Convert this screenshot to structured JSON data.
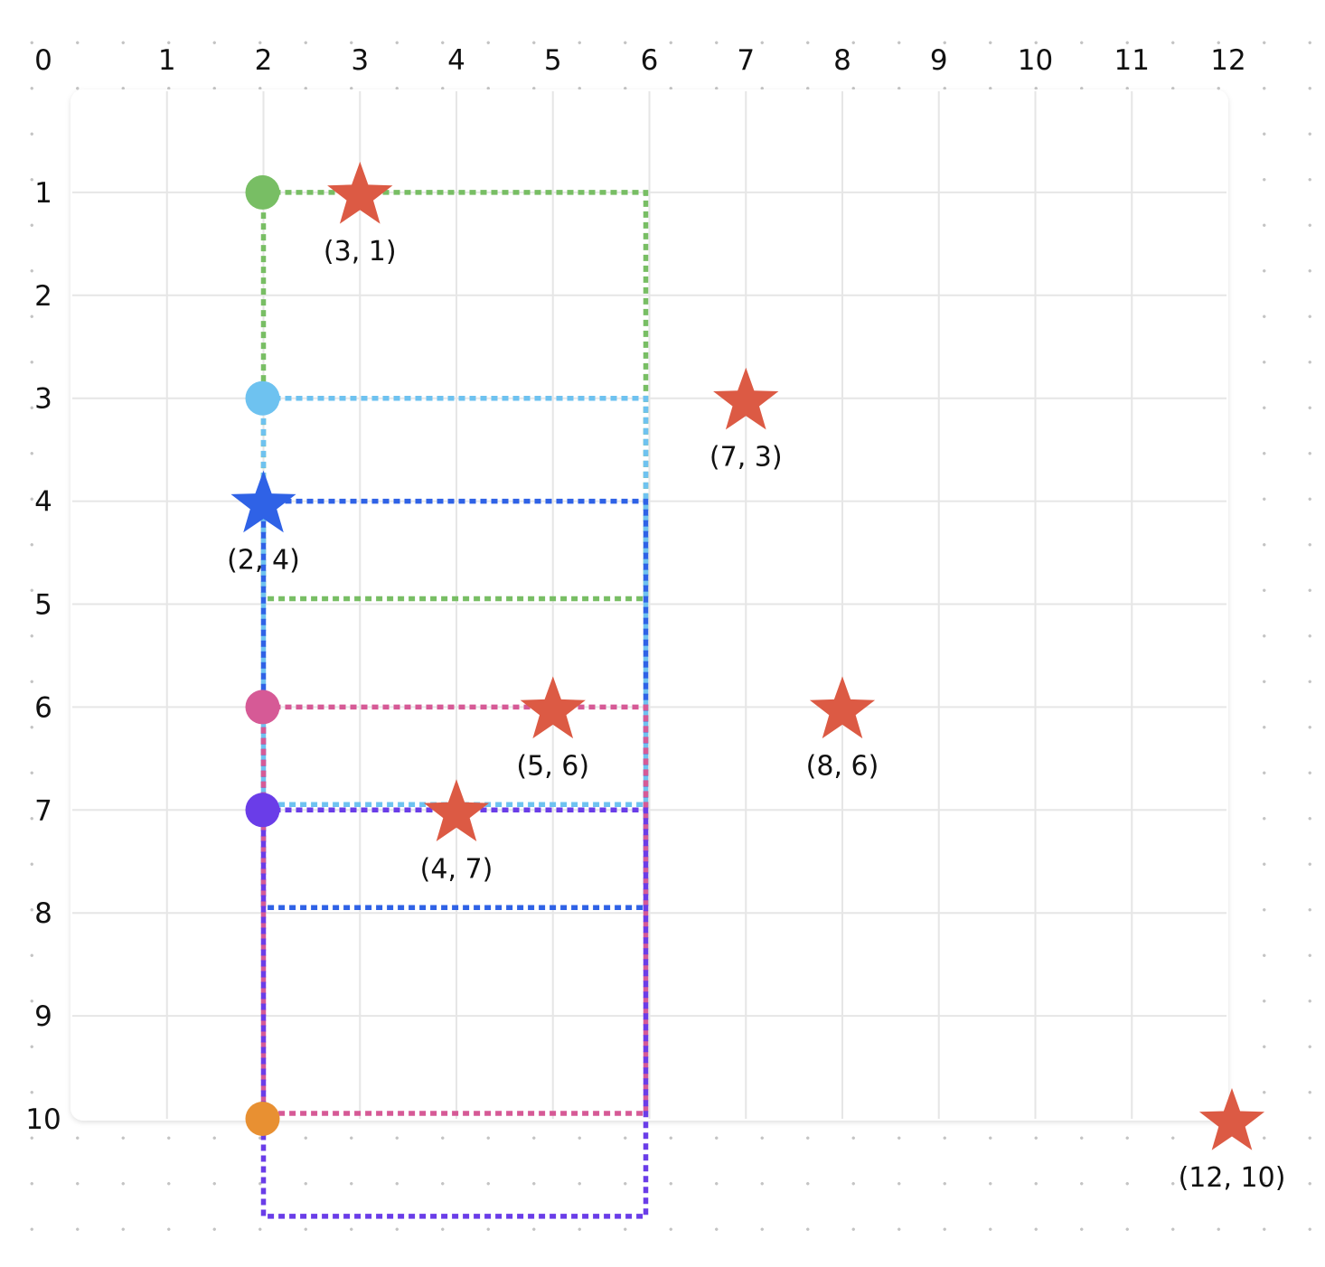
{
  "axes": {
    "x_ticks": [
      "0",
      "1",
      "2",
      "3",
      "4",
      "5",
      "6",
      "7",
      "8",
      "9",
      "10",
      "11",
      "12"
    ],
    "y_ticks": [
      "1",
      "2",
      "3",
      "4",
      "5",
      "6",
      "7",
      "8",
      "9",
      "10"
    ]
  },
  "colors": {
    "grid": "#e6e6e6",
    "panel_bg": "#ffffff",
    "star_default": "#dc5a44",
    "star_selected": "#2f62e6",
    "green": "#78be64",
    "light_blue": "#6ec2f0",
    "blue": "#2f62e6",
    "pink": "#d65a96",
    "purple": "#6a3de8",
    "orange": "#e89032"
  },
  "stars": [
    {
      "x": 3,
      "y": 1,
      "label": "(3, 1)",
      "color": "#dc5a44"
    },
    {
      "x": 7,
      "y": 3,
      "label": "(7, 3)",
      "color": "#dc5a44"
    },
    {
      "x": 2,
      "y": 4,
      "label": "(2, 4)",
      "color": "#2f62e6"
    },
    {
      "x": 5,
      "y": 6,
      "label": "(5, 6)",
      "color": "#dc5a44"
    },
    {
      "x": 8,
      "y": 6,
      "label": "(8, 6)",
      "color": "#dc5a44"
    },
    {
      "x": 4,
      "y": 7,
      "label": "(4, 7)",
      "color": "#dc5a44"
    },
    {
      "x": 12,
      "y": 10,
      "label": "(12, 10)",
      "color": "#dc5a44"
    }
  ],
  "anchors": [
    {
      "x": 2,
      "y": 1,
      "color": "#78be64"
    },
    {
      "x": 2,
      "y": 3,
      "color": "#6ec2f0"
    },
    {
      "x": 2,
      "y": 6,
      "color": "#d65a96"
    },
    {
      "x": 2,
      "y": 7,
      "color": "#6a3de8"
    },
    {
      "x": 2,
      "y": 10,
      "color": "#e89032"
    }
  ],
  "rectangles": [
    {
      "x1": 2,
      "y1": 1,
      "x2": 6,
      "y2": 5,
      "color": "#78be64"
    },
    {
      "x1": 2,
      "y1": 3,
      "x2": 6,
      "y2": 7,
      "color": "#6ec2f0"
    },
    {
      "x1": 2,
      "y1": 4,
      "x2": 6,
      "y2": 8,
      "color": "#2f62e6"
    },
    {
      "x1": 2,
      "y1": 6,
      "x2": 6,
      "y2": 10,
      "color": "#d65a96"
    },
    {
      "x1": 2,
      "y1": 7,
      "x2": 6,
      "y2": 11,
      "color": "#6a3de8"
    }
  ]
}
